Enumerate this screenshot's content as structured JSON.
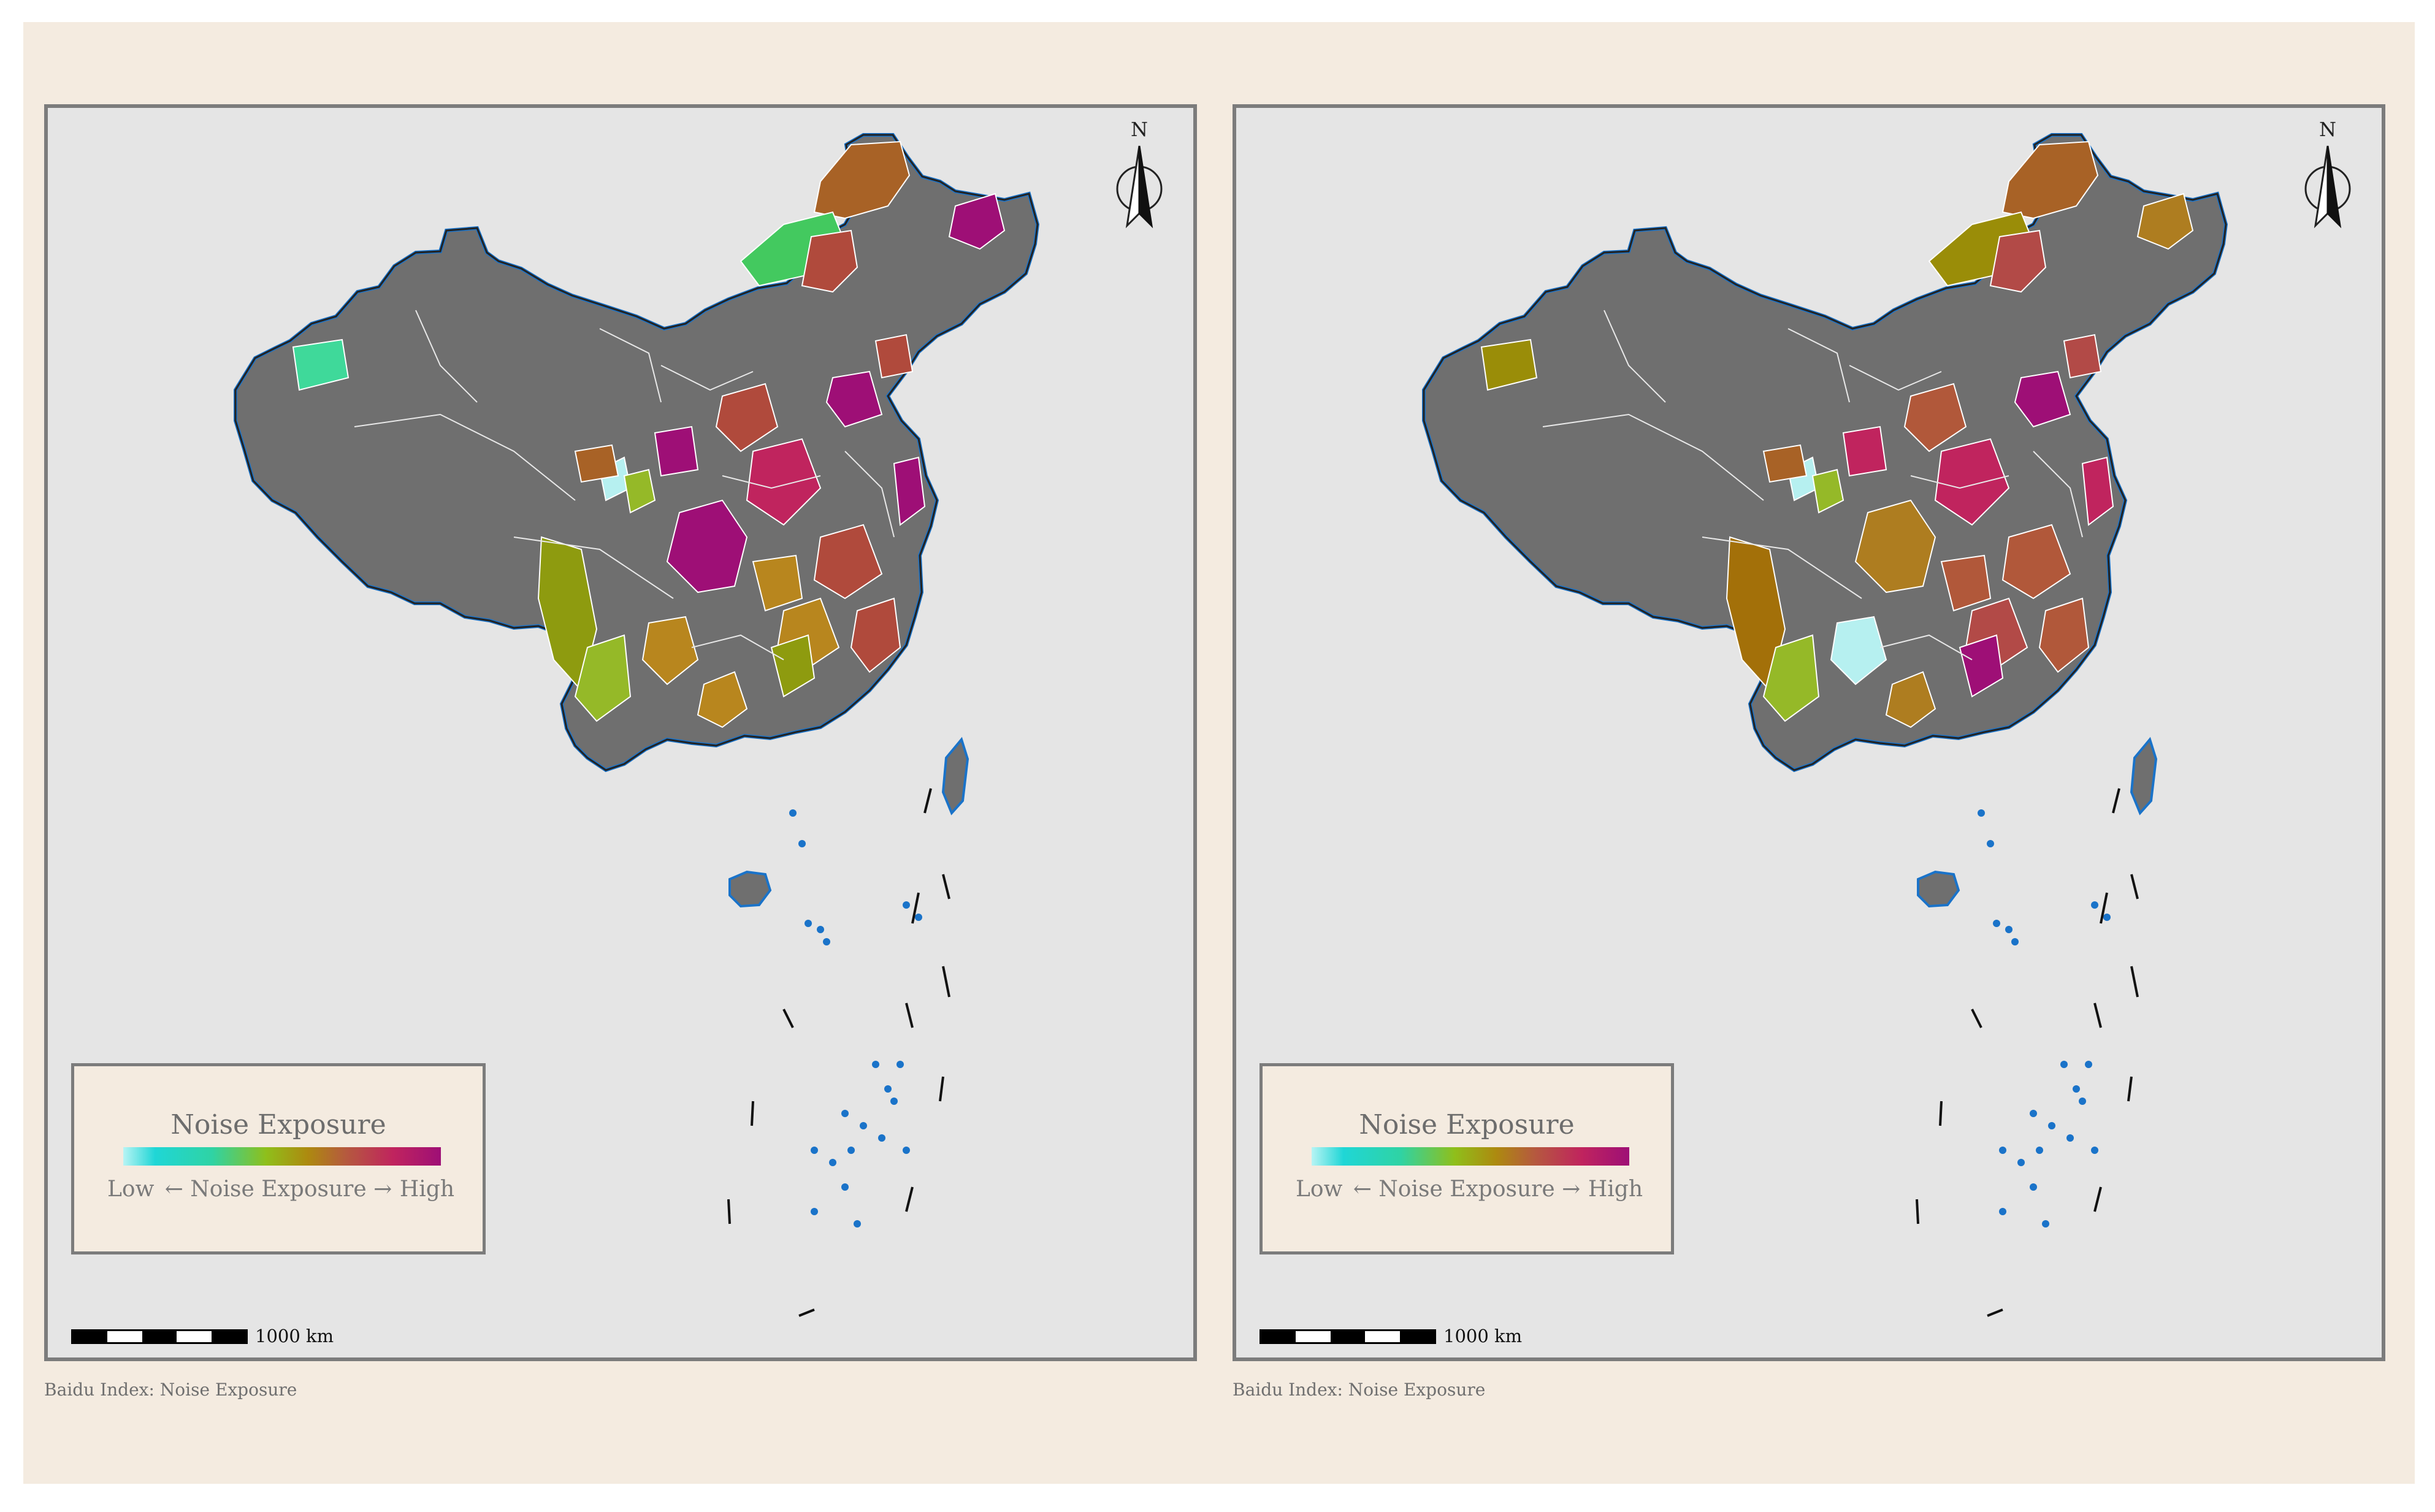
{
  "figure": {
    "background_color": "#f4ebe0",
    "panel_background_color": "#e5e5e5",
    "land_color": "#6f6f6f",
    "coast_color": "#1a73c9"
  },
  "panels": [
    {
      "id": "left",
      "north_label": "N",
      "north_icon": "north-arrow-icon",
      "legend": {
        "title": "Noise Exposure",
        "low_label": "Low",
        "mid_label": "← Noise Exposure →",
        "high_label": "High",
        "gradient_colors": [
          "#1fd6d6",
          "#2fd3a4",
          "#8fbf1b",
          "#ad8a0f",
          "#b55a3e",
          "#c0245e",
          "#9e0f76"
        ]
      },
      "scale_label": "1000 km",
      "caption": "Baidu Index: Noise Exposure",
      "region_palette": [
        "#a86226",
        "#43c95f",
        "#3fd99a",
        "#8e9b0f",
        "#b8861e",
        "#c0245e",
        "#b04a3c",
        "#9e0f76",
        "#95b928",
        "#b6f0f0"
      ]
    },
    {
      "id": "right",
      "north_label": "N",
      "north_icon": "north-arrow-icon",
      "legend": {
        "title": "Noise Exposure",
        "low_label": "Low",
        "mid_label": "← Noise Exposure →",
        "high_label": "High",
        "gradient_colors": [
          "#1fd6d6",
          "#2fd3a4",
          "#8fbf1b",
          "#ad8a0f",
          "#b55a3e",
          "#c0245e",
          "#9e0f76"
        ]
      },
      "scale_label": "1000 km",
      "caption": "Baidu Index: Noise Exposure",
      "region_palette": [
        "#a86226",
        "#9a8d08",
        "#a37009",
        "#b24a47",
        "#c0245e",
        "#b1583a",
        "#9e0f76",
        "#ae7d20",
        "#95b928",
        "#b6f0f0"
      ]
    }
  ]
}
